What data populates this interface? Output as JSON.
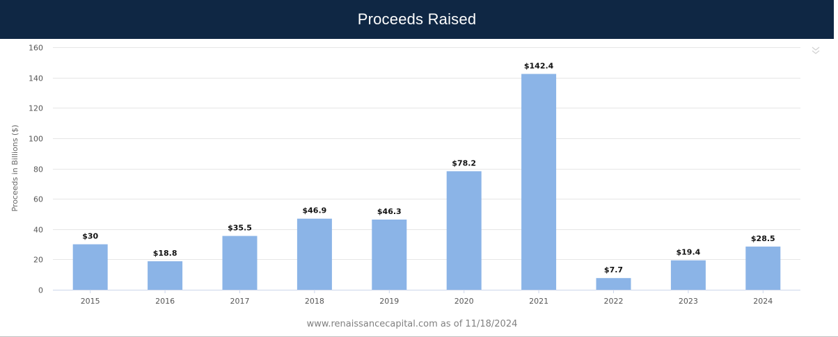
{
  "header": {
    "title": "Proceeds Raised"
  },
  "menu": {
    "icon": "double-chevron-down-icon"
  },
  "colors": {
    "header_bg": "#0f2744",
    "bar": "#8bb4e7",
    "grid": "#e6e6e6"
  },
  "source": "www.renaissancecapital.com as of 11/18/2024",
  "chart_data": {
    "type": "bar",
    "title": "Proceeds Raised",
    "xlabel": "",
    "ylabel": "Proceeds in Billions ($)",
    "categories": [
      "2015",
      "2016",
      "2017",
      "2018",
      "2019",
      "2020",
      "2021",
      "2022",
      "2023",
      "2024"
    ],
    "values": [
      30,
      18.8,
      35.5,
      46.9,
      46.3,
      78.2,
      142.4,
      7.7,
      19.4,
      28.5
    ],
    "data_labels": [
      "$30",
      "$18.8",
      "$35.5",
      "$46.9",
      "$46.3",
      "$78.2",
      "$142.4",
      "$7.7",
      "$19.4",
      "$28.5"
    ],
    "ylim": [
      0,
      160
    ],
    "yticks": [
      0,
      20,
      40,
      60,
      80,
      100,
      120,
      140,
      160
    ],
    "grid": true,
    "legend": "none"
  }
}
